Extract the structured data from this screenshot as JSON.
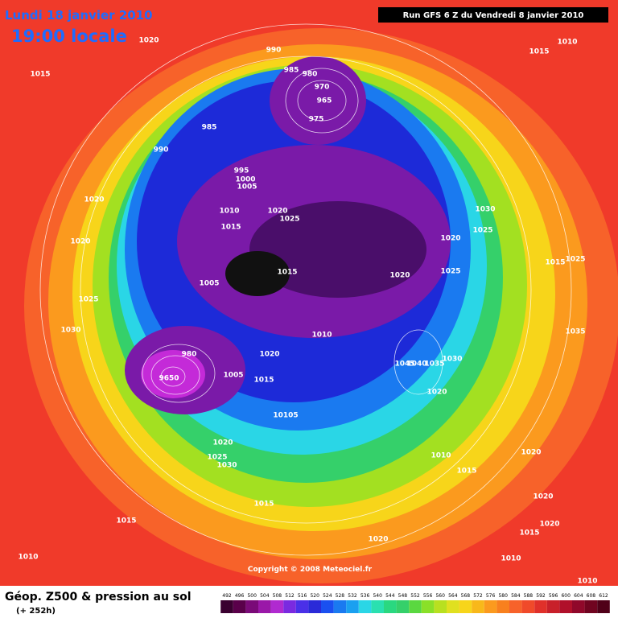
{
  "header": {
    "date": "Lundi 18 janvier 2010",
    "time": "19:00 locale",
    "run": "Run GFS 6 Z du Vendredi 8 janvier 2010"
  },
  "footer": {
    "title": "Géop. Z500 & pression au sol",
    "lead": "(+ 252h)",
    "copyright": "Copyright © 2008 Meteociel.fr"
  },
  "scale": [
    492,
    496,
    500,
    504,
    508,
    512,
    516,
    520,
    524,
    528,
    532,
    536,
    540,
    544,
    548,
    552,
    556,
    560,
    564,
    568,
    572,
    576,
    580,
    584,
    588,
    592,
    596,
    600,
    604,
    608,
    612
  ],
  "isobars": [
    "1020",
    "1015",
    "990",
    "985",
    "980",
    "970",
    "965",
    "975",
    "985",
    "990",
    "995",
    "1000",
    "1005",
    "1010",
    "1020",
    "1025",
    "1015",
    "1020",
    "1020",
    "1005",
    "1015",
    "1025",
    "1030",
    "980",
    "1020",
    "1010",
    "1005",
    "1015",
    "10105",
    "1020",
    "1025",
    "1030",
    "1015",
    "1015",
    "1010",
    "1020",
    "1010",
    "1015",
    "1020",
    "1020",
    "1015",
    "1020",
    "1010",
    "1010",
    "1010",
    "1015",
    "1030",
    "1025",
    "1020",
    "1020",
    "1025",
    "1015",
    "1025",
    "1035",
    "1030",
    "1035",
    "1040",
    "1045",
    "1020",
    "9650"
  ]
}
